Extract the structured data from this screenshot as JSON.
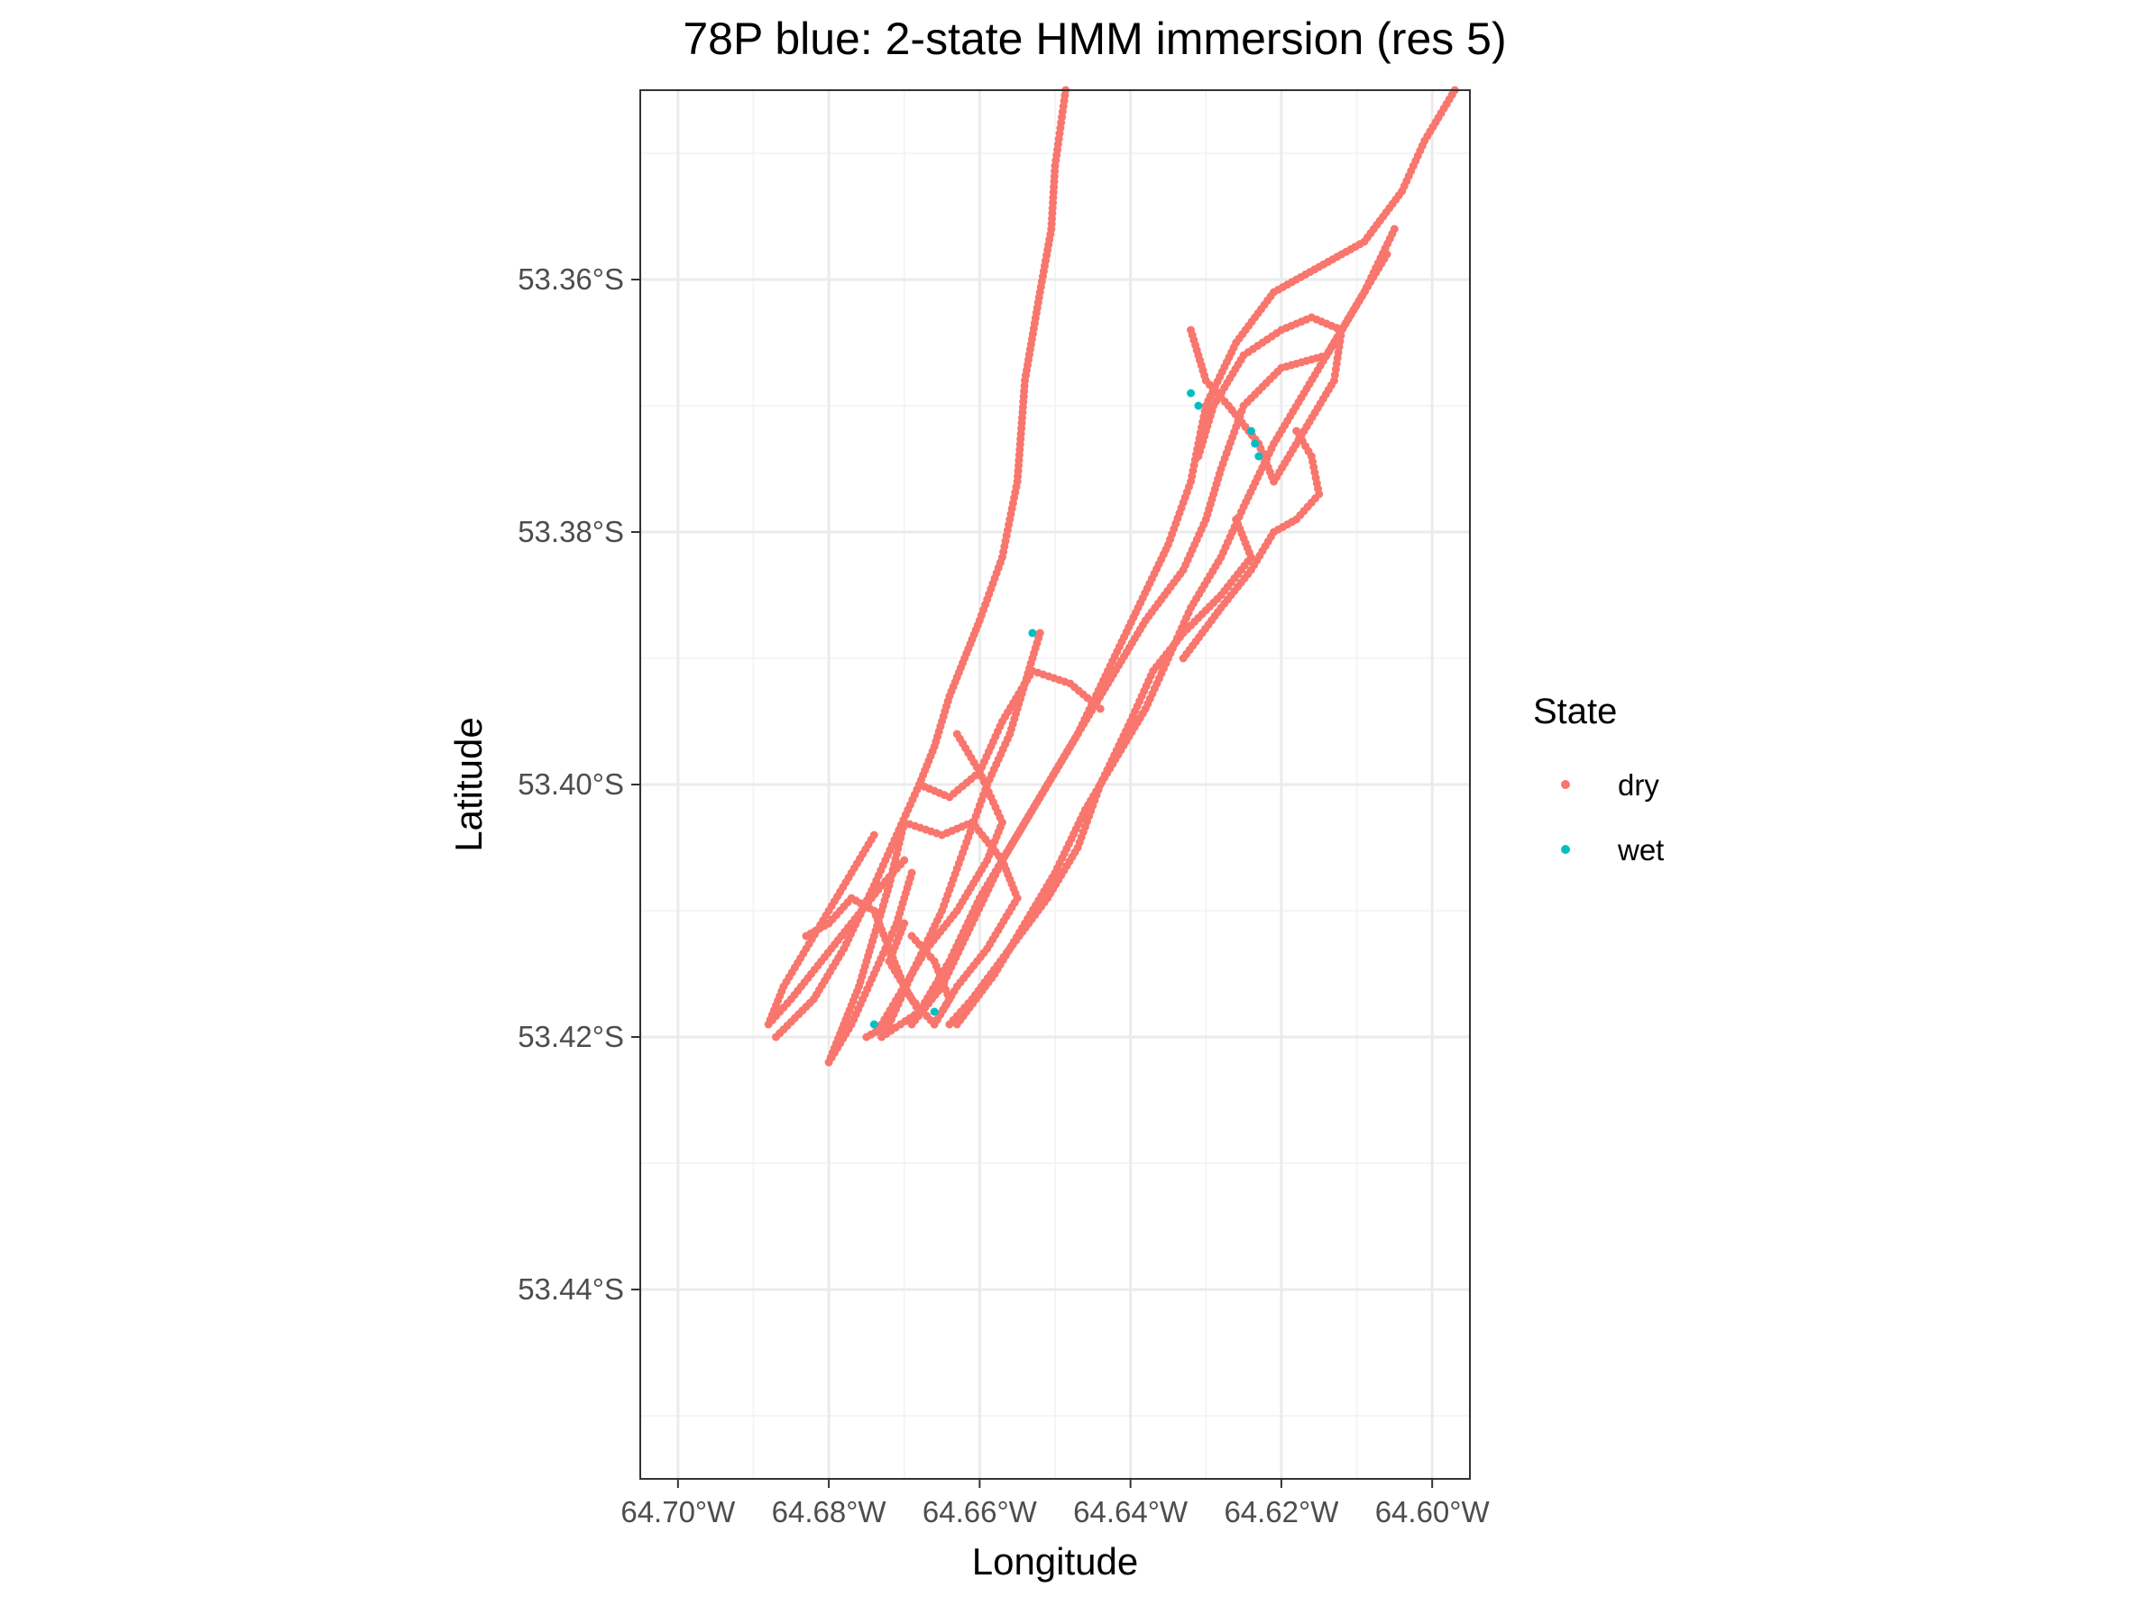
{
  "chart_data": {
    "type": "scatter",
    "title": "78P blue: 2-state HMM immersion (res 5)",
    "xlabel": "Longitude",
    "ylabel": "Latitude",
    "xlim": [
      -64.705,
      -64.595
    ],
    "ylim": [
      -53.455,
      -53.345
    ],
    "x_ticks": [
      -64.7,
      -64.68,
      -64.66,
      -64.64,
      -64.62,
      -64.6
    ],
    "x_tick_labels": [
      "64.70°W",
      "64.68°W",
      "64.66°W",
      "64.64°W",
      "64.62°W",
      "64.60°W"
    ],
    "y_ticks": [
      -53.36,
      -53.38,
      -53.4,
      -53.42,
      -53.44
    ],
    "y_tick_labels": [
      "53.36°S",
      "53.38°S",
      "53.40°S",
      "53.42°S",
      "53.44°S"
    ],
    "grid": true,
    "legend": {
      "title": "State",
      "position": "right",
      "entries": [
        {
          "label": "dry",
          "color": "#F8766D"
        },
        {
          "label": "wet",
          "color": "#00BFC4"
        }
      ]
    },
    "series": [
      {
        "name": "dry",
        "color": "#F8766D",
        "tracks": [
          [
            [
              -64.6486,
              -53.345
            ],
            [
              -64.65,
              -53.351
            ],
            [
              -64.6505,
              -53.356
            ],
            [
              -64.652,
              -53.361
            ],
            [
              -64.654,
              -53.368
            ],
            [
              -64.655,
              -53.376
            ],
            [
              -64.657,
              -53.382
            ],
            [
              -64.66,
              -53.387
            ],
            [
              -64.662,
              -53.39
            ],
            [
              -64.664,
              -53.393
            ],
            [
              -64.666,
              -53.397
            ],
            [
              -64.668,
              -53.4
            ],
            [
              -64.671,
              -53.404
            ],
            [
              -64.674,
              -53.408
            ],
            [
              -64.678,
              -53.413
            ],
            [
              -64.682,
              -53.417
            ],
            [
              -64.687,
              -53.42
            ]
          ],
          [
            [
              -64.597,
              -53.345
            ],
            [
              -64.601,
              -53.349
            ],
            [
              -64.604,
              -53.353
            ],
            [
              -64.609,
              -53.357
            ],
            [
              -64.615,
              -53.359
            ],
            [
              -64.621,
              -53.361
            ],
            [
              -64.626,
              -53.365
            ],
            [
              -64.63,
              -53.37
            ],
            [
              -64.632,
              -53.376
            ],
            [
              -64.635,
              -53.381
            ],
            [
              -64.639,
              -53.386
            ],
            [
              -64.643,
              -53.391
            ],
            [
              -64.647,
              -53.396
            ],
            [
              -64.651,
              -53.4
            ],
            [
              -64.655,
              -53.404
            ],
            [
              -64.66,
              -53.409
            ],
            [
              -64.664,
              -53.414
            ],
            [
              -64.668,
              -53.418
            ],
            [
              -64.673,
              -53.42
            ]
          ],
          [
            [
              -64.605,
              -53.356
            ],
            [
              -64.609,
              -53.361
            ],
            [
              -64.613,
              -53.365
            ],
            [
              -64.617,
              -53.369
            ],
            [
              -64.621,
              -53.373
            ],
            [
              -64.625,
              -53.378
            ],
            [
              -64.628,
              -53.382
            ],
            [
              -64.632,
              -53.386
            ],
            [
              -64.635,
              -53.39
            ],
            [
              -64.638,
              -53.394
            ],
            [
              -64.642,
              -53.398
            ],
            [
              -64.646,
              -53.402
            ],
            [
              -64.65,
              -53.407
            ],
            [
              -64.654,
              -53.411
            ],
            [
              -64.658,
              -53.415
            ],
            [
              -64.663,
              -53.419
            ]
          ],
          [
            [
              -64.606,
              -53.358
            ],
            [
              -64.61,
              -53.362
            ],
            [
              -64.614,
              -53.366
            ],
            [
              -64.62,
              -53.367
            ],
            [
              -64.625,
              -53.37
            ],
            [
              -64.628,
              -53.375
            ],
            [
              -64.63,
              -53.379
            ],
            [
              -64.633,
              -53.383
            ],
            [
              -64.638,
              -53.387
            ],
            [
              -64.643,
              -53.392
            ],
            [
              -64.648,
              -53.397
            ],
            [
              -64.652,
              -53.401
            ],
            [
              -64.657,
              -53.406
            ],
            [
              -64.661,
              -53.411
            ],
            [
              -64.665,
              -53.416
            ],
            [
              -64.669,
              -53.419
            ]
          ],
          [
            [
              -64.632,
              -53.364
            ],
            [
              -64.63,
              -53.368
            ],
            [
              -64.627,
              -53.37
            ],
            [
              -64.623,
              -53.373
            ],
            [
              -64.621,
              -53.376
            ],
            [
              -64.617,
              -53.372
            ],
            [
              -64.613,
              -53.368
            ],
            [
              -64.612,
              -53.364
            ],
            [
              -64.616,
              -53.363
            ],
            [
              -64.62,
              -53.364
            ],
            [
              -64.625,
              -53.366
            ],
            [
              -64.629,
              -53.37
            ],
            [
              -64.631,
              -53.374
            ]
          ],
          [
            [
              -64.626,
              -53.379
            ],
            [
              -64.624,
              -53.382
            ],
            [
              -64.628,
              -53.385
            ],
            [
              -64.633,
              -53.388
            ],
            [
              -64.637,
              -53.391
            ],
            [
              -64.64,
              -53.395
            ],
            [
              -64.644,
              -53.4
            ],
            [
              -64.647,
              -53.405
            ],
            [
              -64.651,
              -53.409
            ],
            [
              -64.656,
              -53.413
            ],
            [
              -64.661,
              -53.417
            ],
            [
              -64.664,
              -53.419
            ]
          ],
          [
            [
              -64.652,
              -53.388
            ],
            [
              -64.654,
              -53.392
            ],
            [
              -64.656,
              -53.396
            ],
            [
              -64.659,
              -53.4
            ],
            [
              -64.662,
              -53.405
            ],
            [
              -64.665,
              -53.41
            ],
            [
              -64.669,
              -53.415
            ],
            [
              -64.672,
              -53.419
            ],
            [
              -64.675,
              -53.42
            ]
          ],
          [
            [
              -64.674,
              -53.404
            ],
            [
              -64.677,
              -53.407
            ],
            [
              -64.68,
              -53.41
            ],
            [
              -64.683,
              -53.413
            ],
            [
              -64.686,
              -53.416
            ],
            [
              -64.688,
              -53.419
            ],
            [
              -64.685,
              -53.417
            ],
            [
              -64.681,
              -53.414
            ],
            [
              -64.677,
              -53.411
            ],
            [
              -64.673,
              -53.408
            ],
            [
              -64.67,
              -53.406
            ]
          ],
          [
            [
              -64.67,
              -53.403
            ],
            [
              -64.672,
              -53.408
            ],
            [
              -64.674,
              -53.412
            ],
            [
              -64.676,
              -53.416
            ],
            [
              -64.678,
              -53.419
            ],
            [
              -64.68,
              -53.422
            ],
            [
              -64.677,
              -53.419
            ],
            [
              -64.674,
              -53.415
            ],
            [
              -64.671,
              -53.411
            ],
            [
              -64.669,
              -53.407
            ]
          ],
          [
            [
              -64.663,
              -53.396
            ],
            [
              -64.66,
              -53.399
            ],
            [
              -64.657,
              -53.403
            ],
            [
              -64.659,
              -53.406
            ],
            [
              -64.663,
              -53.41
            ],
            [
              -64.667,
              -53.413
            ],
            [
              -64.67,
              -53.416
            ],
            [
              -64.673,
              -53.419
            ]
          ],
          [
            [
              -64.644,
              -53.394
            ],
            [
              -64.648,
              -53.392
            ],
            [
              -64.653,
              -53.391
            ],
            [
              -64.657,
              -53.395
            ],
            [
              -64.66,
              -53.399
            ],
            [
              -64.664,
              -53.401
            ],
            [
              -64.668,
              -53.4
            ]
          ],
          [
            [
              -64.67,
              -53.403
            ],
            [
              -64.665,
              -53.404
            ],
            [
              -64.661,
              -53.403
            ],
            [
              -64.657,
              -53.406
            ],
            [
              -64.655,
              -53.409
            ],
            [
              -64.659,
              -53.413
            ],
            [
              -64.663,
              -53.416
            ],
            [
              -64.666,
              -53.419
            ]
          ],
          [
            [
              -64.618,
              -53.372
            ],
            [
              -64.616,
              -53.374
            ],
            [
              -64.615,
              -53.377
            ],
            [
              -64.618,
              -53.379
            ],
            [
              -64.621,
              -53.38
            ],
            [
              -64.624,
              -53.383
            ],
            [
              -64.628,
              -53.386
            ],
            [
              -64.633,
              -53.39
            ]
          ],
          [
            [
              -64.669,
              -53.412
            ],
            [
              -64.666,
              -53.414
            ],
            [
              -64.664,
              -53.417
            ],
            [
              -64.666,
              -53.419
            ],
            [
              -64.669,
              -53.417
            ],
            [
              -64.672,
              -53.414
            ],
            [
              -64.67,
              -53.411
            ]
          ],
          [
            [
              -64.683,
              -53.412
            ],
            [
              -64.68,
              -53.411
            ],
            [
              -64.677,
              -53.409
            ],
            [
              -64.674,
              -53.41
            ],
            [
              -64.672,
              -53.413
            ],
            [
              -64.67,
              -53.416
            ],
            [
              -64.668,
              -53.418
            ]
          ]
        ]
      },
      {
        "name": "wet",
        "color": "#00BFC4",
        "points": [
          [
            -64.632,
            -53.369
          ],
          [
            -64.631,
            -53.37
          ],
          [
            -64.624,
            -53.372
          ],
          [
            -64.6235,
            -53.373
          ],
          [
            -64.623,
            -53.374
          ],
          [
            -64.674,
            -53.419
          ],
          [
            -64.666,
            -53.418
          ],
          [
            -64.653,
            -53.388
          ]
        ]
      }
    ]
  }
}
